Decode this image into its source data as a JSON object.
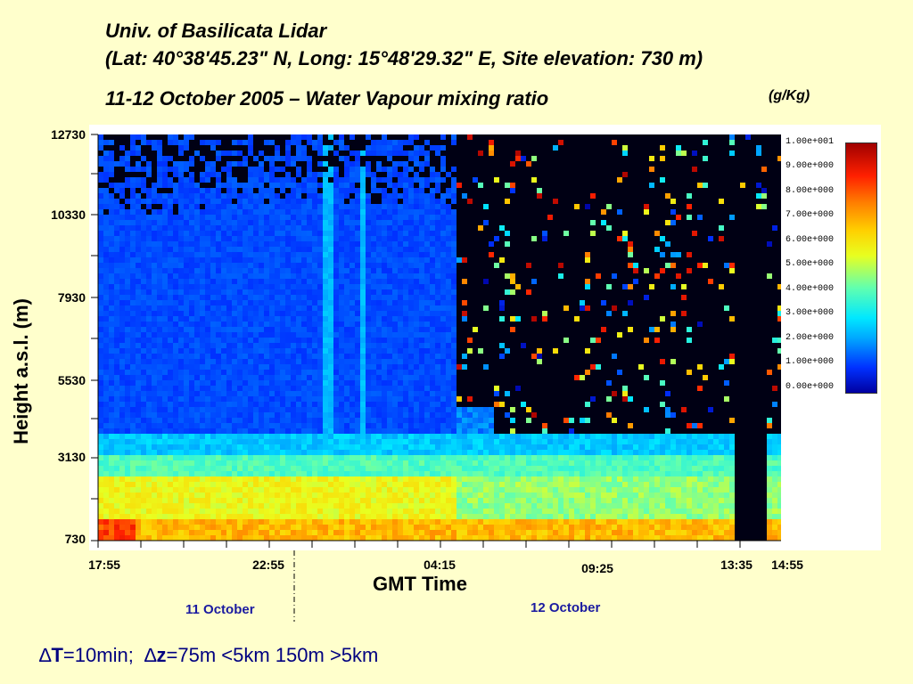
{
  "header": {
    "line1": "Univ. of Basilicata Lidar",
    "line2": "(Lat: 40°38'45.23\" N, Long: 15°48'29.32\" E, Site elevation: 730 m)",
    "line3": "11-12 October 2005 – Water Vapour mixing ratio",
    "unit": "(g/Kg)"
  },
  "chart_data": {
    "type": "heatmap",
    "title": "11-12 October 2005 – Water Vapour mixing ratio",
    "xlabel": "GMT Time",
    "ylabel": "Height a.s.l. (m)",
    "ylim": [
      730,
      12730
    ],
    "x_ticks": [
      "17:55",
      "22:55",
      "04:15",
      "09:25",
      "13:35",
      "14:55"
    ],
    "y_ticks": [
      "12730",
      "10330",
      "7930",
      "5530",
      "3130",
      "730"
    ],
    "colorbar": {
      "label": "(g/Kg)",
      "range": [
        0,
        10
      ],
      "ticks": [
        "1.00e+001",
        "9.00e+000",
        "8.00e+000",
        "7.00e+000",
        "6.00e+000",
        "5.00e+000",
        "4.00e+000",
        "3.00e+000",
        "2.00e+000",
        "1.00e+000",
        "0.00e+000"
      ]
    },
    "day_labels": [
      "11 October",
      "12 October"
    ]
  },
  "footer": {
    "dt_symbol": "∆",
    "dt_var": "T",
    "dt_value": "=10min;",
    "dz_symbol": "∆",
    "dz_var": "z",
    "dz_value": "=75m <5km 150m >5km"
  },
  "colors": {
    "background": "#ffffcc",
    "no_data": "#000014"
  }
}
